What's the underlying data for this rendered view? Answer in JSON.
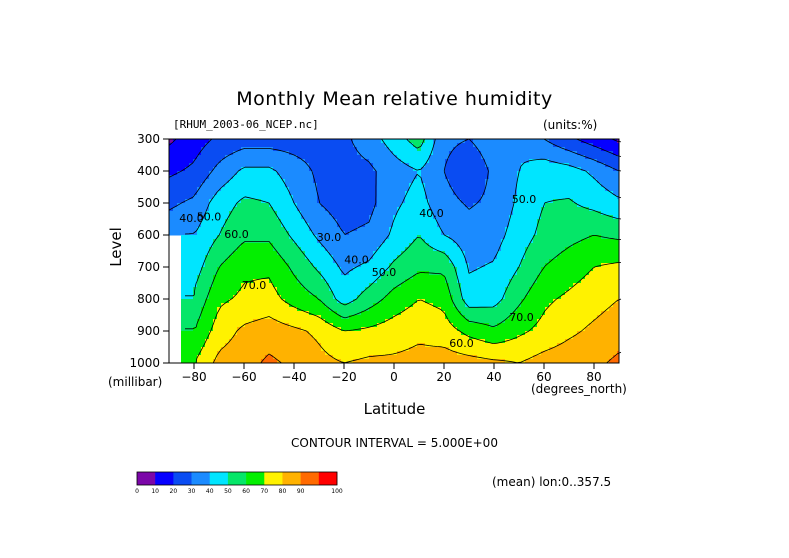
{
  "colors": {
    "scale": [
      "#7b06a8",
      "#0600ff",
      "#0a4cf2",
      "#1b8bff",
      "#00e5ff",
      "#05e668",
      "#03ef00",
      "#fff200",
      "#ffb200",
      "#ff6a00",
      "#ff0000"
    ]
  },
  "chart_data": {
    "type": "heatmap",
    "title": "Monthly Mean relative humidity",
    "dataset": "[RHUM_2003-06_NCEP.nc]",
    "units": "(units:%)",
    "xlabel": "Latitude",
    "xunit": "(degrees_north)",
    "ylabel": "Level",
    "yunit": "(millibar)",
    "xlim": [
      -90,
      90
    ],
    "ylim": [
      1000,
      300
    ],
    "x_ticks": [
      -80,
      -60,
      -40,
      -20,
      0,
      20,
      40,
      60,
      80
    ],
    "y_ticks": [
      300,
      400,
      500,
      600,
      700,
      800,
      900,
      1000
    ],
    "lat": [
      -90,
      -80,
      -70,
      -60,
      -50,
      -40,
      -30,
      -20,
      -10,
      0,
      10,
      20,
      30,
      40,
      50,
      60,
      70,
      80,
      90
    ],
    "levels": [
      1000,
      900,
      800,
      700,
      600,
      500,
      400,
      300
    ],
    "values": [
      [
        null,
        70,
        83,
        86,
        92,
        88,
        83,
        80,
        82,
        82,
        83,
        85,
        84,
        82,
        80,
        84,
        86,
        88,
        92
      ],
      [
        null,
        60,
        75,
        82,
        85,
        82,
        78,
        70,
        72,
        75,
        78,
        75,
        67,
        62,
        68,
        73,
        78,
        82,
        86
      ],
      [
        null,
        52,
        68,
        72,
        74,
        66,
        60,
        45,
        55,
        64,
        70,
        67,
        44,
        46,
        58,
        68,
        72,
        76,
        80
      ],
      [
        null,
        45,
        60,
        68,
        68,
        58,
        48,
        38,
        42,
        52,
        58,
        58,
        39,
        41,
        50,
        60,
        65,
        70,
        72
      ],
      [
        37,
        40,
        50,
        58,
        58,
        48,
        38,
        30,
        32,
        42,
        50,
        40,
        34,
        36,
        45,
        53,
        57,
        60,
        58
      ],
      [
        28,
        32,
        45,
        52,
        50,
        40,
        30,
        25,
        27,
        38,
        44,
        33,
        29,
        32,
        42,
        50,
        51,
        47,
        42
      ],
      [
        18,
        22,
        33,
        42,
        42,
        35,
        28,
        26,
        28,
        35,
        40,
        30,
        23,
        32,
        40,
        46,
        44,
        38,
        30
      ],
      [
        8,
        15,
        22,
        25,
        25,
        25,
        25,
        28,
        35,
        45,
        55,
        32,
        30,
        35,
        38,
        30,
        22,
        15,
        8
      ]
    ],
    "contour_interval_label": "CONTOUR INTERVAL = 5.000E+00",
    "mean_label": "(mean) lon:0..357.5",
    "contour_labels": [
      {
        "text": "40.0",
        "lat": -81,
        "level": 550
      },
      {
        "text": "50.0",
        "lat": -74,
        "level": 545
      },
      {
        "text": "60.0",
        "lat": -63,
        "level": 600
      },
      {
        "text": "70.0",
        "lat": -56,
        "level": 760
      },
      {
        "text": "30.0",
        "lat": -26,
        "level": 610
      },
      {
        "text": "40.0",
        "lat": -15,
        "level": 680
      },
      {
        "text": "50.0",
        "lat": -4,
        "level": 718
      },
      {
        "text": "60.0",
        "lat": 27,
        "level": 940
      },
      {
        "text": "70.0",
        "lat": 51,
        "level": 860
      },
      {
        "text": "40.0",
        "lat": 15,
        "level": 535
      },
      {
        "text": "50.0",
        "lat": 52,
        "level": 490
      }
    ],
    "colorbar": {
      "ticks": [
        0,
        10,
        20,
        30,
        40,
        50,
        60,
        70,
        80,
        90,
        100
      ]
    }
  }
}
